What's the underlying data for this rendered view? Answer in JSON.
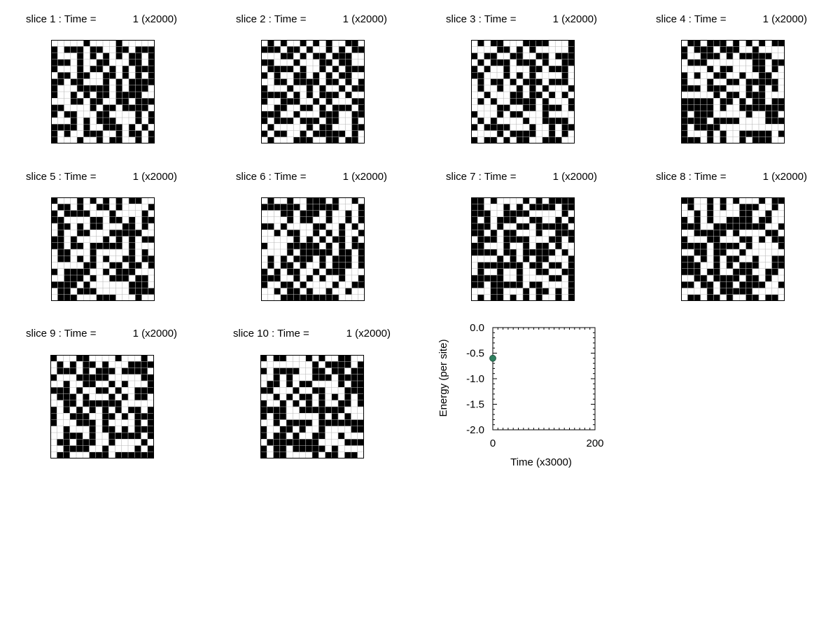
{
  "slices": [
    {
      "label": "slice 1 : Time =",
      "time_value": "1 (x2000)",
      "grid": [
        "0000010000100000",
        "1011101100110111",
        "1000101010101101",
        "1110100110001101",
        "1000101101010111",
        "0110110011010101",
        "1101100010101111",
        "1000111110101110",
        "1001010110111100",
        "0001101100110111",
        "1100001011011110",
        "1011000110000101",
        "0001010111000101",
        "1111010011101010",
        "1010011100101101",
        "1000100101100101"
      ]
    },
    {
      "label": "slice 2 : Time =",
      "time_value": "1 (x2000)",
      "grid": [
        "0101001010100110",
        "1110110100101011",
        "0001101011011100",
        "1100010001101100",
        "0111101001010111",
        "1010011010101100",
        "0011011110110101",
        "1000100101001011",
        "1111010101110100",
        "1001110010100011",
        "0011001101011101",
        "1110010001110011",
        "1011101110110010",
        "0100000101100011",
        "1011001011111010",
        "0100011100110110"
      ]
    },
    {
      "label": "slice 3 : Time =",
      "time_value": "1 (x2000)",
      "grid": [
        "0101100011110001",
        "0000110101000001",
        "1011001100110111",
        "0101110111010011",
        "1010010001101110",
        "1100010101000010",
        "0101101011101110",
        "0100100101010001",
        "0010001101101010",
        "0101001111010001",
        "0000110011011101",
        "1000101100010000",
        "0101000010011110",
        "1011110001001011",
        "0000101111001010",
        "1011010110011100"
      ]
    },
    {
      "label": "slice 4 : Time =",
      "time_value": "1 (x2000)",
      "grid": [
        "0110111010101011",
        "1011101110010000",
        "1001110101111100",
        "0111000000011011",
        "0000101100011010",
        "1010011001001100",
        "1000100110111110",
        "1110111000101010",
        "0000010110111000",
        "1111101101011011",
        "1111101001111111",
        "1011100000100110",
        "1111011110000111",
        "1011110000000000",
        "1000101001111101",
        "1110101001011100"
      ]
    },
    {
      "label": "slice 5 : Time =",
      "time_value": "1 (x2000)",
      "grid": [
        "1000101010101100",
        "0110100110100001",
        "1011110001000010",
        "1100001101101011",
        "0110101100011010",
        "0100110001111100",
        "1101000010101011",
        "1101101111101000",
        "0110001000001010",
        "0110101010011011",
        "0000011001101101",
        "1011110010111000",
        "0011101001110110",
        "1111010000001110",
        "0110111000001111",
        "0111000111000100"
      ]
    },
    {
      "label": "slice 6 : Time =",
      "time_value": "1 (x2000)",
      "grid": [
        "0100100111010010",
        "1111110111110001",
        "0001101110100101",
        "0000101100100101",
        "1101000011001010",
        "0010110010101001",
        "0000010101011010",
        "1000111110101011",
        "0000101111101101",
        "0101011101011101",
        "0101101001011101",
        "1010110010111000",
        "1110010101001001",
        "1001101000010011",
        "0010110100100100",
        "0001111111110000"
      ]
    },
    {
      "label": "slice 7 : Time =",
      "time_value": "1 (x2000)",
      "grid": [
        "1101000010101111",
        "1100010101111011",
        "1110011110000010",
        "1010111001100101",
        "1110100110111110",
        "1101011000100111",
        "0111011110001101",
        "1100010010110100",
        "1111011011111010",
        "0000101010110001",
        "0111111101101101",
        "0100100100110011",
        "1111100100001101",
        "1101111101100001",
        "0001100010110101",
        "0101101010100101"
      ]
    },
    {
      "label": "slice 8 : Time =",
      "time_value": "1 (x2000)",
      "grid": [
        "1100101010001011",
        "0100101001110010",
        "0010100001100100",
        "1010100111101100",
        "1110011111111001",
        "0011111010000110",
        "1000110001101011",
        "1111011110100001",
        "0011011001000000",
        "1101010110010011",
        "1110010101110011",
        "1110110011100110",
        "0011011110110100",
        "1101101101111001",
        "0000101111100000",
        "0110110100110110"
      ]
    },
    {
      "label": "slice 9 : Time =",
      "time_value": "1 (x2000)",
      "grid": [
        "1000110000100010",
        "0101011010001111",
        "0111010111011110",
        "1000111110000011",
        "0010011001010001",
        "1110100110100111",
        "0111010001010110",
        "0011011111100000",
        "1010101010101101",
        "1001110011010111",
        "1000111010000101",
        "0010001011010111",
        "0011101001111101",
        "0110111001000010",
        "0011110010000101",
        "0110001110111111"
      ]
    },
    {
      "label": "slice 10 : Time =",
      "time_value": "1 (x2000)",
      "grid": [
        "1011000101001100",
        "0000000010111101",
        "1011110011011011",
        "0010100011101111",
        "0110101100001011",
        "1100010011000111",
        "0010101101010101",
        "1001010101001101",
        "1111001111111000",
        "1011000001010100",
        "0010111101111111",
        "1001101001000011",
        "1011010011001000",
        "0111111110000111",
        "1011011111010000",
        "1011000010110110"
      ]
    }
  ],
  "chart_data": {
    "type": "scatter",
    "xlabel": "Time (x3000)",
    "ylabel": "Energy (per site)",
    "xlim": [
      0,
      200
    ],
    "ylim": [
      -2.0,
      0.0
    ],
    "x_ticks": [
      "0",
      "200"
    ],
    "y_ticks": [
      "0.0",
      "-0.5",
      "-1.0",
      "-1.5",
      "-2.0"
    ],
    "points": [
      {
        "x": 0,
        "y": -0.6
      }
    ],
    "marker_color": "#2f7f5f",
    "grid": false
  }
}
